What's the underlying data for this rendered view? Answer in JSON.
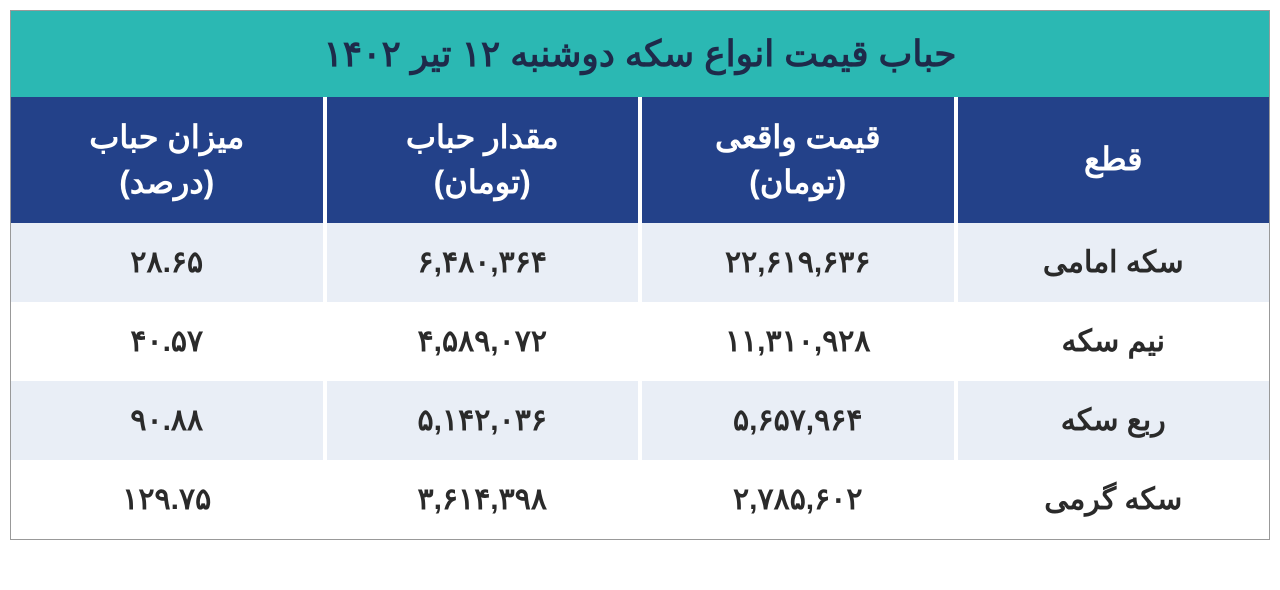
{
  "table": {
    "title": "حباب قیمت انواع سکه دوشنبه ۱۲ تیر ۱۴۰۲",
    "title_bg": "#2bb8b3",
    "title_color": "#1e2a4a",
    "header_bg": "#234189",
    "header_color": "#ffffff",
    "row_bg_odd": "#e9eef6",
    "row_bg_even": "#ffffff",
    "border_color": "#ffffff",
    "font_family": "Tahoma",
    "title_fontsize": 36,
    "header_fontsize": 32,
    "cell_fontsize": 30,
    "columns": [
      "قطع",
      "قیمت واقعی (تومان)",
      "مقدار حباب (تومان)",
      "میزان حباب (درصد)"
    ],
    "columns_2line": [
      [
        "قطع",
        ""
      ],
      [
        "قیمت واقعی",
        "(تومان)"
      ],
      [
        "مقدار حباب",
        "(تومان)"
      ],
      [
        "میزان حباب",
        "(درصد)"
      ]
    ],
    "rows": [
      [
        "سکه امامی",
        "۲۲,۶۱۹,۶۳۶",
        "۶,۴۸۰,۳۶۴",
        "۲۸.۶۵"
      ],
      [
        "نیم سکه",
        "۱۱,۳۱۰,۹۲۸",
        "۴,۵۸۹,۰۷۲",
        "۴۰.۵۷"
      ],
      [
        "ربع سکه",
        "۵,۶۵۷,۹۶۴",
        "۵,۱۴۲,۰۳۶",
        "۹۰.۸۸"
      ],
      [
        "سکه گرمی",
        "۲,۷۸۵,۶۰۲",
        "۳,۶۱۴,۳۹۸",
        "۱۲۹.۷۵"
      ]
    ]
  }
}
